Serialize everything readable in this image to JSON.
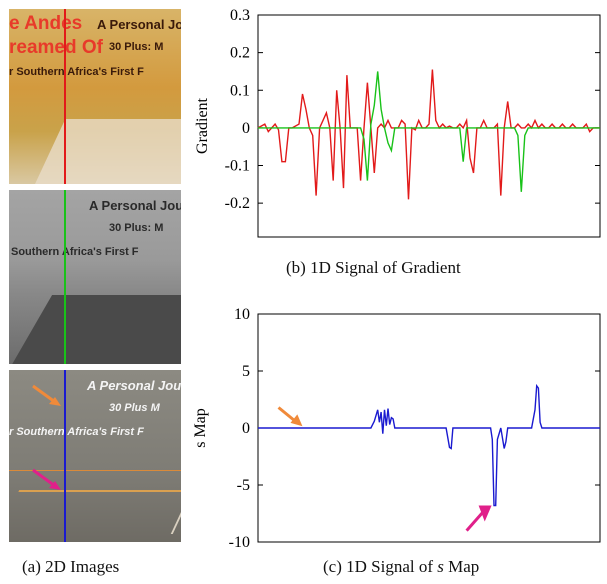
{
  "panels": {
    "top": {
      "line1": "e Andes",
      "line1b": "A Personal Jo",
      "line2": "reamed Of",
      "line2b": "30 Plus: M",
      "line3": "r Southern Africa's First F"
    },
    "middle": {
      "line1": "A Personal Jou",
      "line2": "30 Plus: M",
      "line3": "Southern Africa's First F"
    },
    "bottom": {
      "line1": "A Personal Jou",
      "line2": "30 Plus M",
      "line3": "r Southern Africa's First F"
    }
  },
  "captions": {
    "a": "(a) 2D Images",
    "b": "(b) 1D Signal of Gradient",
    "c_prefix": "(c) 1D Signal of ",
    "c_italic": "s",
    "c_suffix": " Map"
  },
  "colors": {
    "red_line": "#e21a1a",
    "green_line": "#19c219",
    "blue_line": "#1a1ad0",
    "orange_arrow": "#f08a3a",
    "magenta_arrow": "#e0208a"
  },
  "chart_data": [
    {
      "type": "line",
      "title": "",
      "xlabel": "",
      "ylabel": "Gradient",
      "ylim": [
        -0.29,
        0.3
      ],
      "xlim": [
        0,
        100
      ],
      "yticks": [
        {
          "v": 0.3,
          "label": "0.3"
        },
        {
          "v": 0.2,
          "label": "0.2"
        },
        {
          "v": 0.1,
          "label": "0.1"
        },
        {
          "v": 0,
          "label": "0"
        },
        {
          "v": -0.1,
          "label": "-0.1"
        },
        {
          "v": -0.2,
          "label": "-0.2"
        }
      ],
      "series": [
        {
          "color": "#e21a1a",
          "x": [
            0,
            2,
            3,
            4,
            5,
            6,
            7,
            8,
            9,
            10,
            12,
            13,
            14,
            15,
            16,
            17,
            18,
            19,
            20,
            21,
            22,
            23,
            24,
            25,
            26,
            27,
            28,
            29,
            30,
            31,
            32,
            33,
            34,
            35,
            36,
            37,
            38,
            39,
            40,
            41,
            42,
            43,
            44,
            45,
            46,
            47,
            48,
            49,
            50,
            51,
            52,
            53,
            54,
            55,
            56,
            57,
            58,
            59,
            60,
            61,
            62,
            63,
            64,
            65,
            66,
            67,
            68,
            69,
            70,
            71,
            72,
            73,
            74,
            75,
            76,
            77,
            78,
            79,
            80,
            81,
            82,
            83,
            84,
            85,
            86,
            87,
            88,
            89,
            90,
            91,
            92,
            93,
            94,
            95,
            96,
            97,
            98,
            99,
            100
          ],
          "y": [
            0.0,
            0.01,
            -0.01,
            0.0,
            0.01,
            -0.005,
            -0.09,
            -0.09,
            0.0,
            0.0,
            0.01,
            0.09,
            0.05,
            0.0,
            -0.02,
            -0.18,
            0.0,
            0.02,
            0.04,
            0.0,
            -0.14,
            0.1,
            0.0,
            -0.16,
            0.14,
            0.0,
            0.0,
            0.0,
            -0.14,
            0.0,
            0.12,
            0.0,
            -0.12,
            0.0,
            0.01,
            0.0,
            0.02,
            0.0,
            0.0,
            0.0,
            0.02,
            0.01,
            -0.19,
            0.0,
            -0.005,
            0.02,
            0.0,
            0.0,
            0.01,
            0.155,
            0.02,
            0.0,
            0.01,
            0.0,
            0.005,
            0.0,
            0.0,
            0.01,
            0.0,
            0.02,
            -0.08,
            -0.12,
            0.0,
            0.0,
            0.02,
            0.0,
            0.0,
            0.0,
            0.01,
            -0.18,
            0.0,
            0.07,
            0.0,
            0.0,
            0.01,
            0.0,
            0.0,
            0.01,
            0.0,
            0.02,
            0.0,
            0.01,
            0.0,
            0.0,
            0.01,
            0.0,
            0.0,
            0.01,
            0.0,
            0.0,
            0.01,
            0.0,
            0.0,
            0.0,
            0.01,
            -0.01,
            0.0,
            0.0,
            0.0
          ]
        },
        {
          "color": "#19c219",
          "x": [
            0,
            5,
            10,
            15,
            20,
            25,
            30,
            31,
            32,
            33,
            34,
            35,
            36,
            37,
            38,
            39,
            40,
            41,
            42,
            45,
            50,
            55,
            58,
            59,
            60,
            61,
            62,
            63,
            64,
            65,
            70,
            75,
            76,
            77,
            78,
            79,
            80,
            81,
            82,
            85,
            90,
            95,
            98,
            100
          ],
          "y": [
            0,
            0,
            0,
            0,
            0,
            0,
            0,
            -0.03,
            -0.14,
            0.01,
            0.06,
            0.15,
            0.05,
            0.0,
            -0.04,
            -0.06,
            0.0,
            0.0,
            0,
            0,
            0,
            0,
            0,
            0.0,
            -0.09,
            0.0,
            0,
            0,
            0,
            0,
            0,
            0,
            -0.02,
            -0.17,
            -0.02,
            0.0,
            0.0,
            0,
            0,
            0,
            0,
            0,
            0,
            0
          ]
        }
      ]
    },
    {
      "type": "line",
      "title": "",
      "xlabel": "",
      "ylabel": "s Map",
      "ylim": [
        -10,
        10
      ],
      "xlim": [
        0,
        100
      ],
      "yticks": [
        {
          "v": 10,
          "label": "10"
        },
        {
          "v": 5,
          "label": "5"
        },
        {
          "v": 0,
          "label": "0"
        },
        {
          "v": -5,
          "label": "-5"
        },
        {
          "v": -10,
          "label": "-10"
        }
      ],
      "series": [
        {
          "color": "#1a1ad0",
          "x": [
            0,
            33,
            34,
            35,
            35.5,
            36,
            36.5,
            37,
            37.5,
            38,
            38.5,
            39,
            39.5,
            40,
            41,
            55,
            56,
            56.5,
            57,
            60,
            68,
            68.5,
            69,
            69.5,
            70,
            71,
            72,
            72.5,
            73,
            80,
            81,
            81.5,
            82,
            82.5,
            83,
            100
          ],
          "y": [
            0,
            0,
            0.6,
            1.6,
            0.5,
            1.4,
            -0.5,
            1.6,
            0.2,
            1.7,
            0.3,
            0.9,
            0.8,
            0.0,
            0,
            0,
            -1.7,
            -1.8,
            0,
            0,
            0,
            -1.0,
            -6.8,
            -6.8,
            -1.0,
            0,
            -1.8,
            -1.2,
            0,
            0,
            1.6,
            3.7,
            3.5,
            0.5,
            0,
            0
          ]
        }
      ]
    }
  ]
}
